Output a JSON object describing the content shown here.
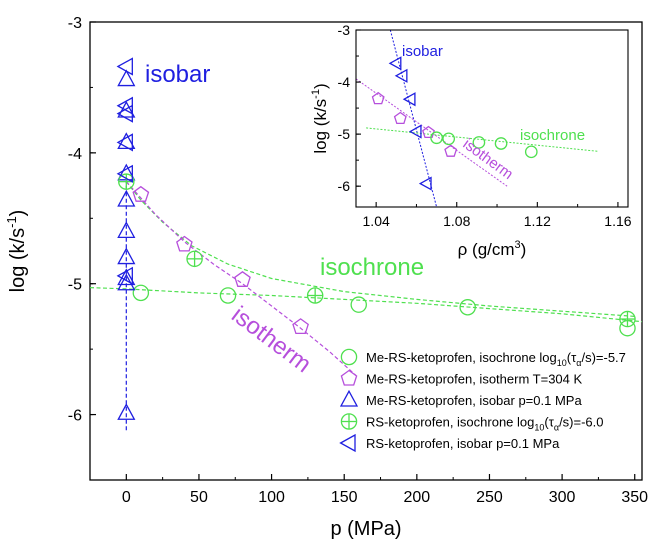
{
  "colors": {
    "isochrone": "#4fe04f",
    "isotherm": "#b64fdc",
    "isobar": "#1f1fe0",
    "axis": "#000000"
  },
  "icons": {
    "isochrone_me": "open-circle",
    "isotherm_me": "open-pentagon",
    "isobar_me": "open-triangle-up",
    "isochrone_rs": "crossed-circle",
    "isobar_rs": "open-triangle-left"
  },
  "chart_data": [
    {
      "type": "scatter",
      "xlabel": "p (MPa)",
      "ylabel_main": "log (k/s",
      "ylabel_sup": "-1",
      "ylabel_tail": ")",
      "xlim": [
        -25,
        355
      ],
      "ylim": [
        -6.5,
        -3.0
      ],
      "xticks": [
        "0",
        "50",
        "100",
        "150",
        "200",
        "250",
        "300",
        "350"
      ],
      "yticks": [
        "-6",
        "-5",
        "-4",
        "-3"
      ],
      "annotations": {
        "isobar": "isobar",
        "isochrone": "isochrone",
        "isotherm": "isotherm"
      },
      "legend": {
        "placement": "bottom-right",
        "entries": [
          {
            "key": "me_isochrone",
            "parts": [
              {
                "t": "Me-RS-ketoprofen, isochrone log"
              },
              {
                "t": "10",
                "sub": true
              },
              {
                "t": "(τ"
              },
              {
                "t": "α",
                "sub": true
              },
              {
                "t": "/s)=-5.7"
              }
            ]
          },
          {
            "key": "me_isotherm",
            "parts": [
              {
                "t": "Me-RS-ketoprofen, isotherm T=304 K"
              }
            ]
          },
          {
            "key": "me_isobar",
            "parts": [
              {
                "t": "Me-RS-ketoprofen, isobar p=0.1 MPa"
              }
            ]
          },
          {
            "key": "rs_isochrone",
            "parts": [
              {
                "t": "RS-ketoprofen, isochrone log"
              },
              {
                "t": "10",
                "sub": true
              },
              {
                "t": "(τ"
              },
              {
                "t": "α",
                "sub": true
              },
              {
                "t": "/s)=-6.0"
              }
            ]
          },
          {
            "key": "rs_isobar",
            "parts": [
              {
                "t": "RS-ketoprofen, isobar p=0.1 MPa"
              }
            ]
          }
        ]
      },
      "series": [
        {
          "key": "me_isochrone",
          "marker": "circle",
          "color": "isochrone",
          "x": [
            10,
            70,
            160,
            235,
            345
          ],
          "y": [
            -5.07,
            -5.09,
            -5.16,
            -5.18,
            -5.34
          ]
        },
        {
          "key": "me_isotherm",
          "marker": "pentagon",
          "color": "isotherm",
          "x": [
            10,
            40,
            80,
            120
          ],
          "y": [
            -4.32,
            -4.7,
            -4.97,
            -5.33
          ]
        },
        {
          "key": "me_isobar",
          "marker": "triangle",
          "color": "isobar",
          "x": [
            0,
            0,
            0,
            0,
            0,
            0,
            0,
            0,
            0,
            0
          ],
          "y": [
            -3.44,
            -3.68,
            -3.92,
            -4.16,
            -4.36,
            -4.6,
            -4.8,
            -4.96,
            -5.0,
            -5.99
          ]
        },
        {
          "key": "rs_isochrone",
          "marker": "crosscircle",
          "color": "isochrone",
          "x": [
            0,
            47,
            130,
            345
          ],
          "y": [
            -4.22,
            -4.81,
            -5.09,
            -5.27
          ]
        },
        {
          "key": "rs_isobar",
          "marker": "lefttriangle",
          "color": "isobar",
          "x": [
            0,
            0,
            0,
            0,
            0,
            0
          ],
          "y": [
            -3.34,
            -3.64,
            -3.7,
            -3.92,
            -4.16,
            -4.94
          ]
        }
      ],
      "fits": [
        {
          "key": "isochrone_me_fit",
          "color": "isochrone",
          "x": [
            -25,
            0,
            50,
            100,
            150,
            200,
            250,
            300,
            355
          ],
          "y": [
            -5.03,
            -5.04,
            -5.07,
            -5.09,
            -5.12,
            -5.15,
            -5.19,
            -5.23,
            -5.29
          ]
        },
        {
          "key": "isochrone_rs_fit",
          "color": "isochrone",
          "x": [
            0,
            10,
            25,
            45,
            70,
            100,
            150,
            200,
            250,
            300,
            350
          ],
          "y": [
            -4.22,
            -4.36,
            -4.53,
            -4.71,
            -4.85,
            -4.96,
            -5.06,
            -5.12,
            -5.17,
            -5.21,
            -5.25
          ]
        },
        {
          "key": "isotherm_fit",
          "color": "isotherm",
          "x": [
            0,
            20,
            40,
            60,
            80,
            100,
            120,
            140,
            158
          ],
          "y": [
            -4.22,
            -4.47,
            -4.68,
            -4.85,
            -5.0,
            -5.17,
            -5.34,
            -5.52,
            -5.7
          ]
        },
        {
          "key": "isobar_fit",
          "color": "isobar",
          "x": [
            0,
            0
          ],
          "y": [
            -6.12,
            -4.22
          ]
        }
      ]
    },
    {
      "type": "scatter",
      "xlabel_main": "ρ (g/cm",
      "xlabel_sup": "3",
      "xlabel_tail": ")",
      "ylabel_main": "log (k/s",
      "ylabel_sup": "-1",
      "ylabel_tail": ")",
      "xlim": [
        1.03,
        1.165
      ],
      "ylim": [
        -6.4,
        -3.0
      ],
      "xticks": [
        "1.04",
        "1.08",
        "1.12",
        "1.16"
      ],
      "yticks": [
        "-6",
        "-5",
        "-4",
        "-3"
      ],
      "annotations": {
        "isobar": "isobar",
        "isochrone": "isochrone",
        "isotherm": "isotherm"
      },
      "series": [
        {
          "key": "in_isobar",
          "marker": "lefttriangle",
          "color": "isobar",
          "x": [
            1.05,
            1.053,
            1.057,
            1.06,
            1.065
          ],
          "y": [
            -3.64,
            -3.88,
            -4.33,
            -4.95,
            -5.95
          ]
        },
        {
          "key": "in_isotherm",
          "marker": "pentagon",
          "color": "isotherm",
          "x": [
            1.041,
            1.052,
            1.066,
            1.077
          ],
          "y": [
            -4.32,
            -4.7,
            -4.97,
            -5.33
          ]
        },
        {
          "key": "in_isochrone",
          "marker": "circle",
          "color": "isochrone",
          "x": [
            1.07,
            1.076,
            1.091,
            1.102,
            1.117
          ],
          "y": [
            -5.07,
            -5.09,
            -5.16,
            -5.18,
            -5.34
          ]
        }
      ],
      "fits": [
        {
          "key": "in_isobar_fit",
          "color": "isobar",
          "x": [
            1.047,
            1.07
          ],
          "y": [
            -3.0,
            -6.4
          ]
        },
        {
          "key": "in_isotherm_fit",
          "color": "isotherm",
          "x": [
            1.03,
            1.105
          ],
          "y": [
            -3.94,
            -6.0
          ]
        },
        {
          "key": "in_isochrone_fit",
          "color": "isochrone",
          "x": [
            1.035,
            1.15
          ],
          "y": [
            -4.88,
            -5.33
          ]
        }
      ]
    }
  ]
}
